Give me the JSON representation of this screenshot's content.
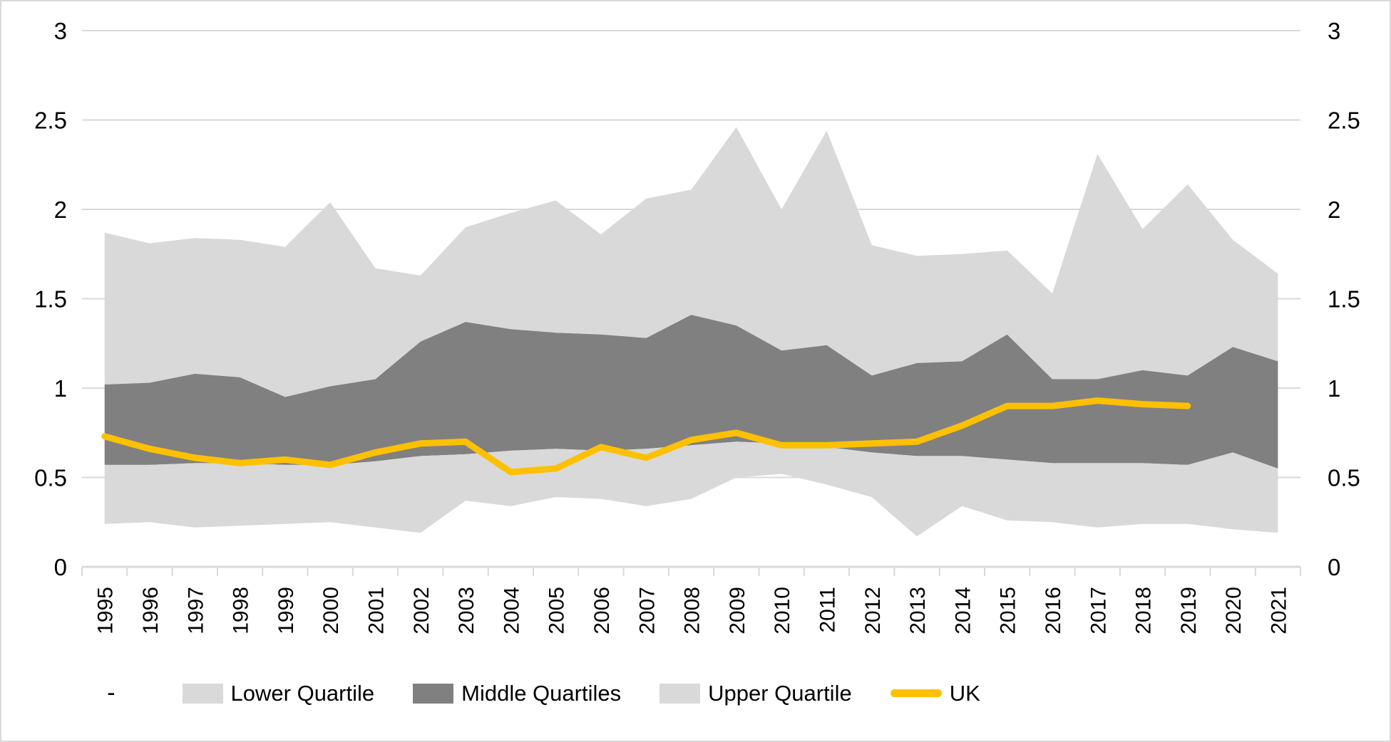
{
  "chart_data": {
    "type": "area",
    "subtype": "stacked-band-chart-with-line",
    "title": "",
    "xlabel": "",
    "ylabel": "",
    "ylim": [
      0,
      3
    ],
    "y_ticks": [
      "0",
      "0.5",
      "1",
      "1.5",
      "2",
      "2.5",
      "3"
    ],
    "y_tick_values": [
      0,
      0.5,
      1,
      1.5,
      2,
      2.5,
      3
    ],
    "grid": "horizontal",
    "dual_axis_labels": true,
    "years": [
      1995,
      1996,
      1997,
      1998,
      1999,
      2000,
      2001,
      2002,
      2003,
      2004,
      2005,
      2006,
      2007,
      2008,
      2009,
      2010,
      2011,
      2012,
      2013,
      2014,
      2015,
      2016,
      2017,
      2018,
      2019,
      2020,
      2021
    ],
    "band_min": [
      0.24,
      0.25,
      0.22,
      0.23,
      0.24,
      0.25,
      0.22,
      0.19,
      0.37,
      0.34,
      0.39,
      0.38,
      0.34,
      0.38,
      0.5,
      0.52,
      0.46,
      0.39,
      0.17,
      0.34,
      0.26,
      0.25,
      0.22,
      0.24,
      0.24,
      0.21,
      0.19
    ],
    "q1": [
      0.57,
      0.57,
      0.58,
      0.58,
      0.57,
      0.57,
      0.59,
      0.62,
      0.63,
      0.65,
      0.66,
      0.65,
      0.66,
      0.68,
      0.7,
      0.69,
      0.67,
      0.64,
      0.62,
      0.62,
      0.6,
      0.58,
      0.58,
      0.58,
      0.57,
      0.64,
      0.55
    ],
    "q3": [
      1.02,
      1.03,
      1.08,
      1.06,
      0.95,
      1.01,
      1.05,
      1.26,
      1.37,
      1.33,
      1.31,
      1.3,
      1.28,
      1.41,
      1.35,
      1.21,
      1.24,
      1.07,
      1.14,
      1.15,
      1.3,
      1.05,
      1.05,
      1.1,
      1.07,
      1.23,
      1.15
    ],
    "band_max": [
      1.87,
      1.81,
      1.84,
      1.83,
      1.79,
      2.04,
      1.67,
      1.63,
      1.9,
      1.98,
      2.05,
      1.86,
      2.06,
      2.11,
      2.46,
      2.0,
      2.44,
      1.8,
      1.74,
      1.75,
      1.77,
      1.53,
      2.31,
      1.89,
      2.14,
      1.83,
      1.64
    ],
    "uk": [
      0.73,
      0.66,
      0.61,
      0.58,
      0.6,
      0.57,
      0.64,
      0.69,
      0.7,
      0.53,
      0.55,
      0.67,
      0.61,
      0.71,
      0.75,
      0.68,
      0.68,
      0.69,
      0.7,
      0.79,
      0.9,
      0.9,
      0.93,
      0.91,
      0.9,
      null,
      null
    ],
    "stack_note": "'-' is an invisible base series at band_min; Lower Quartile fills band_min to q1; Middle Quartiles fills q1 to q3; Upper Quartile fills q3 to band_max; UK is a line series ending in 2019",
    "legend": [
      {
        "label": "-",
        "swatch": "none"
      },
      {
        "label": "Lower Quartile",
        "swatch": "box-light"
      },
      {
        "label": "Middle Quartiles",
        "swatch": "box-dark"
      },
      {
        "label": "Upper Quartile",
        "swatch": "box-light"
      },
      {
        "label": "UK",
        "swatch": "line"
      }
    ],
    "colors": {
      "band_light": "#d9d9d9",
      "band_dark": "#808080",
      "uk_line": "#ffc000",
      "gridline": "#d9d9d9",
      "axis_line": "#d9d9d9",
      "axis_text": "#000000"
    },
    "legend_position": "bottom"
  }
}
